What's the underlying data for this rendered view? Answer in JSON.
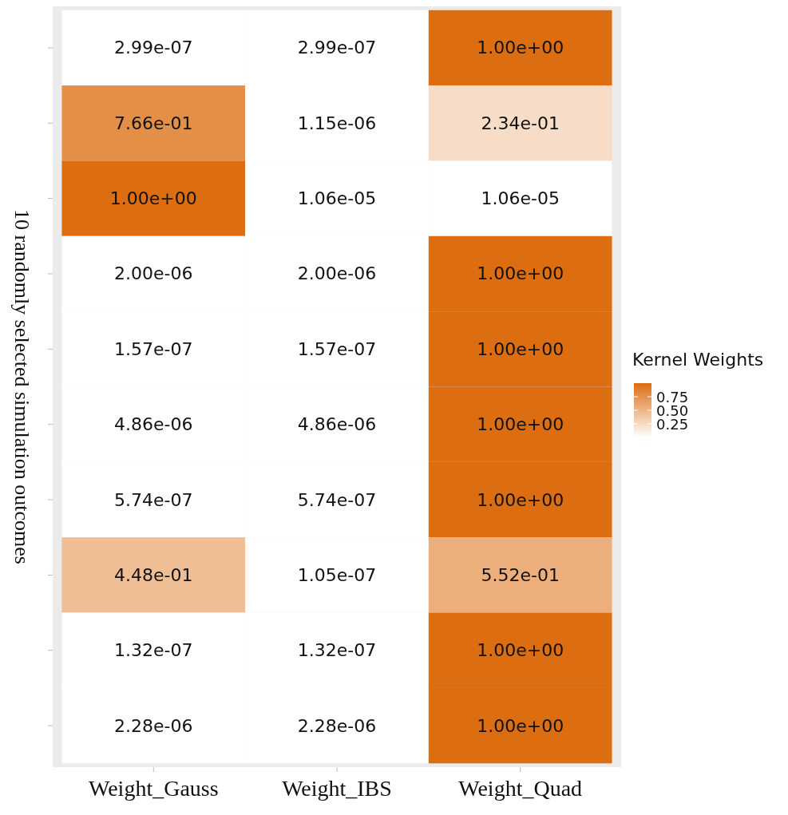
{
  "chart_data": {
    "type": "heatmap",
    "ylabel": "10 randomly selected simulation outcomes",
    "clabel": "Kernel Weights",
    "categories": [
      "Weight_Gauss",
      "Weight_IBS",
      "Weight_Quad"
    ],
    "y_categories": [
      null,
      null,
      null,
      null,
      null,
      null,
      null,
      null,
      null,
      null
    ],
    "cells": [
      [
        2.99e-07,
        2.99e-07,
        1.0
      ],
      [
        0.766,
        1.15e-06,
        0.234
      ],
      [
        1.0,
        1.06e-05,
        1.06e-05
      ],
      [
        2e-06,
        2e-06,
        1.0
      ],
      [
        1.57e-07,
        1.57e-07,
        1.0
      ],
      [
        4.86e-06,
        4.86e-06,
        1.0
      ],
      [
        5.74e-07,
        5.74e-07,
        1.0
      ],
      [
        0.448,
        1.05e-07,
        0.552
      ],
      [
        1.32e-07,
        1.32e-07,
        1.0
      ],
      [
        2.28e-06,
        2.28e-06,
        1.0
      ]
    ],
    "cell_labels": [
      [
        "2.99e-07",
        "2.99e-07",
        "1.00e+00"
      ],
      [
        "7.66e-01",
        "1.15e-06",
        "2.34e-01"
      ],
      [
        "1.00e+00",
        "1.06e-05",
        "1.06e-05"
      ],
      [
        "2.00e-06",
        "2.00e-06",
        "1.00e+00"
      ],
      [
        "1.57e-07",
        "1.57e-07",
        "1.00e+00"
      ],
      [
        "4.86e-06",
        "4.86e-06",
        "1.00e+00"
      ],
      [
        "5.74e-07",
        "5.74e-07",
        "1.00e+00"
      ],
      [
        "4.48e-01",
        "1.05e-07",
        "5.52e-01"
      ],
      [
        "1.32e-07",
        "1.32e-07",
        "1.00e+00"
      ],
      [
        "2.28e-06",
        "2.28e-06",
        "1.00e+00"
      ]
    ],
    "colors": [
      "#ffffff",
      "#dc6d10"
    ],
    "clim": [
      0,
      1
    ],
    "cticks": [
      {
        "value": 0.25,
        "label": "0.25"
      },
      {
        "value": 0.5,
        "label": "0.50"
      },
      {
        "value": 0.75,
        "label": "0.75"
      }
    ],
    "tick_labels": "x"
  }
}
